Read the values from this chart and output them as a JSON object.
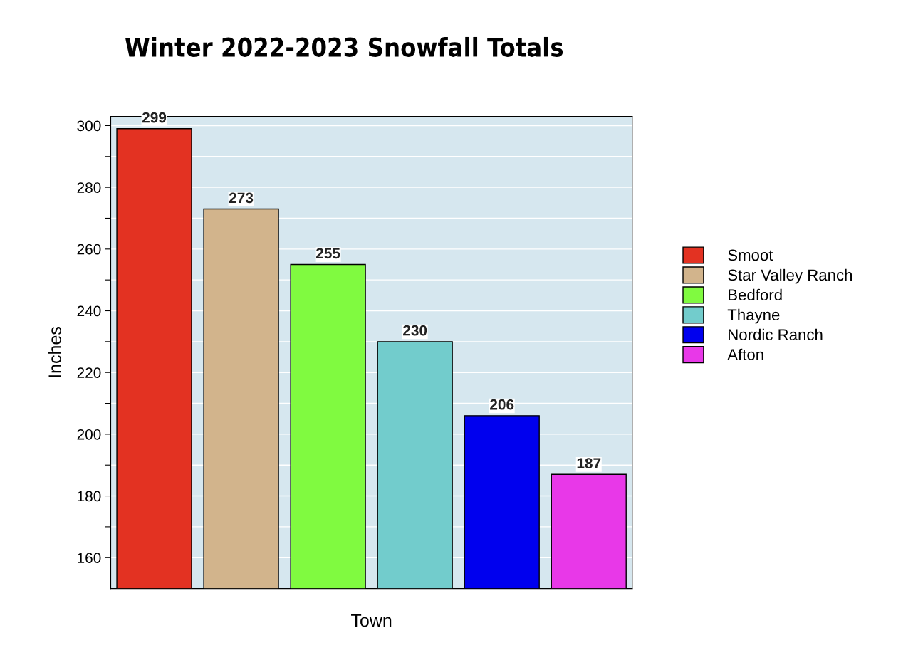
{
  "chart_data": {
    "type": "bar",
    "title": "Winter 2022-2023 Snowfall Totals",
    "xlabel": "Town",
    "ylabel": "Inches",
    "categories": [
      null,
      null,
      null,
      null,
      null,
      null
    ],
    "series": [
      {
        "name": "Smoot",
        "color": "#e33222",
        "values": [
          299,
          null,
          null,
          null,
          null,
          null
        ]
      },
      {
        "name": "Star Valley Ranch",
        "color": "#d2b48c",
        "values": [
          null,
          273,
          null,
          null,
          null,
          null
        ]
      },
      {
        "name": "Bedford",
        "color": "#80fa40",
        "values": [
          null,
          null,
          255,
          null,
          null,
          null
        ]
      },
      {
        "name": "Thayne",
        "color": "#72cccc",
        "values": [
          null,
          null,
          null,
          230,
          null,
          null
        ]
      },
      {
        "name": "Nordic Ranch",
        "color": "#0000ee",
        "values": [
          null,
          null,
          null,
          null,
          206,
          null
        ]
      },
      {
        "name": "Afton",
        "color": "#e838e8",
        "values": [
          null,
          null,
          null,
          null,
          null,
          187
        ]
      }
    ],
    "ylim": [
      150,
      303
    ],
    "yticks": [
      160,
      {
        "value": 170,
        "label": null
      },
      180,
      {
        "value": 190,
        "label": null
      },
      200,
      {
        "value": 210,
        "label": null
      },
      220,
      {
        "value": 230,
        "label": null
      },
      240,
      {
        "value": 250,
        "label": null
      },
      260,
      {
        "value": 270,
        "label": null
      },
      280,
      {
        "value": 290,
        "label": null
      },
      300
    ],
    "grid": "y",
    "legend": "right",
    "data_labels": true
  }
}
